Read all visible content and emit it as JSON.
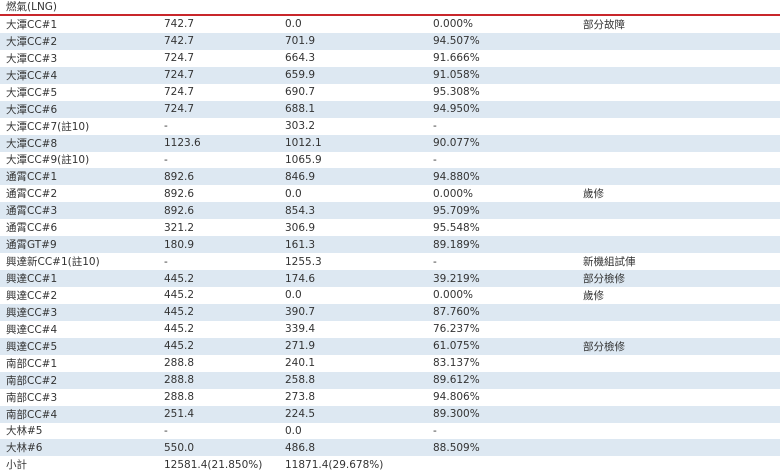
{
  "section": {
    "title": "燃氣(LNG)"
  },
  "table": {
    "rows": [
      {
        "unit": "大潭CC#1",
        "capacity": "742.7",
        "net_output": "0.0",
        "ratio": "0.000%",
        "note": "部分故障"
      },
      {
        "unit": "大潭CC#2",
        "capacity": "742.7",
        "net_output": "701.9",
        "ratio": "94.507%",
        "note": ""
      },
      {
        "unit": "大潭CC#3",
        "capacity": "724.7",
        "net_output": "664.3",
        "ratio": "91.666%",
        "note": ""
      },
      {
        "unit": "大潭CC#4",
        "capacity": "724.7",
        "net_output": "659.9",
        "ratio": "91.058%",
        "note": ""
      },
      {
        "unit": "大潭CC#5",
        "capacity": "724.7",
        "net_output": "690.7",
        "ratio": "95.308%",
        "note": ""
      },
      {
        "unit": "大潭CC#6",
        "capacity": "724.7",
        "net_output": "688.1",
        "ratio": "94.950%",
        "note": ""
      },
      {
        "unit": "大潭CC#7(註10)",
        "capacity": "-",
        "net_output": "303.2",
        "ratio": "-",
        "note": ""
      },
      {
        "unit": "大潭CC#8",
        "capacity": "1123.6",
        "net_output": "1012.1",
        "ratio": "90.077%",
        "note": ""
      },
      {
        "unit": "大潭CC#9(註10)",
        "capacity": "-",
        "net_output": "1065.9",
        "ratio": "-",
        "note": ""
      },
      {
        "unit": "通霄CC#1",
        "capacity": "892.6",
        "net_output": "846.9",
        "ratio": "94.880%",
        "note": ""
      },
      {
        "unit": "通霄CC#2",
        "capacity": "892.6",
        "net_output": "0.0",
        "ratio": "0.000%",
        "note": "歲修"
      },
      {
        "unit": "通霄CC#3",
        "capacity": "892.6",
        "net_output": "854.3",
        "ratio": "95.709%",
        "note": ""
      },
      {
        "unit": "通霄CC#6",
        "capacity": "321.2",
        "net_output": "306.9",
        "ratio": "95.548%",
        "note": ""
      },
      {
        "unit": "通霄GT#9",
        "capacity": "180.9",
        "net_output": "161.3",
        "ratio": "89.189%",
        "note": ""
      },
      {
        "unit": "興達新CC#1(註10)",
        "capacity": "-",
        "net_output": "1255.3",
        "ratio": "-",
        "note": "新機組試俥"
      },
      {
        "unit": "興達CC#1",
        "capacity": "445.2",
        "net_output": "174.6",
        "ratio": "39.219%",
        "note": "部分檢修"
      },
      {
        "unit": "興達CC#2",
        "capacity": "445.2",
        "net_output": "0.0",
        "ratio": "0.000%",
        "note": "歲修"
      },
      {
        "unit": "興達CC#3",
        "capacity": "445.2",
        "net_output": "390.7",
        "ratio": "87.760%",
        "note": ""
      },
      {
        "unit": "興達CC#4",
        "capacity": "445.2",
        "net_output": "339.4",
        "ratio": "76.237%",
        "note": ""
      },
      {
        "unit": "興達CC#5",
        "capacity": "445.2",
        "net_output": "271.9",
        "ratio": "61.075%",
        "note": "部分檢修"
      },
      {
        "unit": "南部CC#1",
        "capacity": "288.8",
        "net_output": "240.1",
        "ratio": "83.137%",
        "note": ""
      },
      {
        "unit": "南部CC#2",
        "capacity": "288.8",
        "net_output": "258.8",
        "ratio": "89.612%",
        "note": ""
      },
      {
        "unit": "南部CC#3",
        "capacity": "288.8",
        "net_output": "273.8",
        "ratio": "94.806%",
        "note": ""
      },
      {
        "unit": "南部CC#4",
        "capacity": "251.4",
        "net_output": "224.5",
        "ratio": "89.300%",
        "note": ""
      },
      {
        "unit": "大林#5",
        "capacity": "-",
        "net_output": "0.0",
        "ratio": "-",
        "note": ""
      },
      {
        "unit": "大林#6",
        "capacity": "550.0",
        "net_output": "486.8",
        "ratio": "88.509%",
        "note": ""
      }
    ],
    "subtotal": {
      "label": "小計",
      "capacity": "12581.4(21.850%)",
      "net_output": "11871.4(29.678%)"
    }
  }
}
